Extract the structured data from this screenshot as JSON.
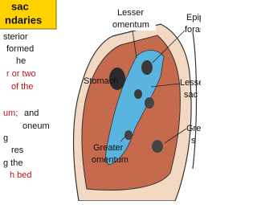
{
  "header": {
    "lines": [
      "sac",
      "ndaries"
    ]
  },
  "body_text": [
    "sterior",
    "formed",
    "he",
    "r or two",
    "of the",
    "um;",
    "and",
    "oneum",
    "g",
    "res",
    "g the",
    "h bed"
  ],
  "diagram": {
    "labels": [
      "Lesser",
      "omentum",
      "Epip",
      "foran",
      "Stomach",
      "Lesse",
      "sac",
      "Greater",
      "omentum",
      "Gre",
      "s"
    ]
  }
}
